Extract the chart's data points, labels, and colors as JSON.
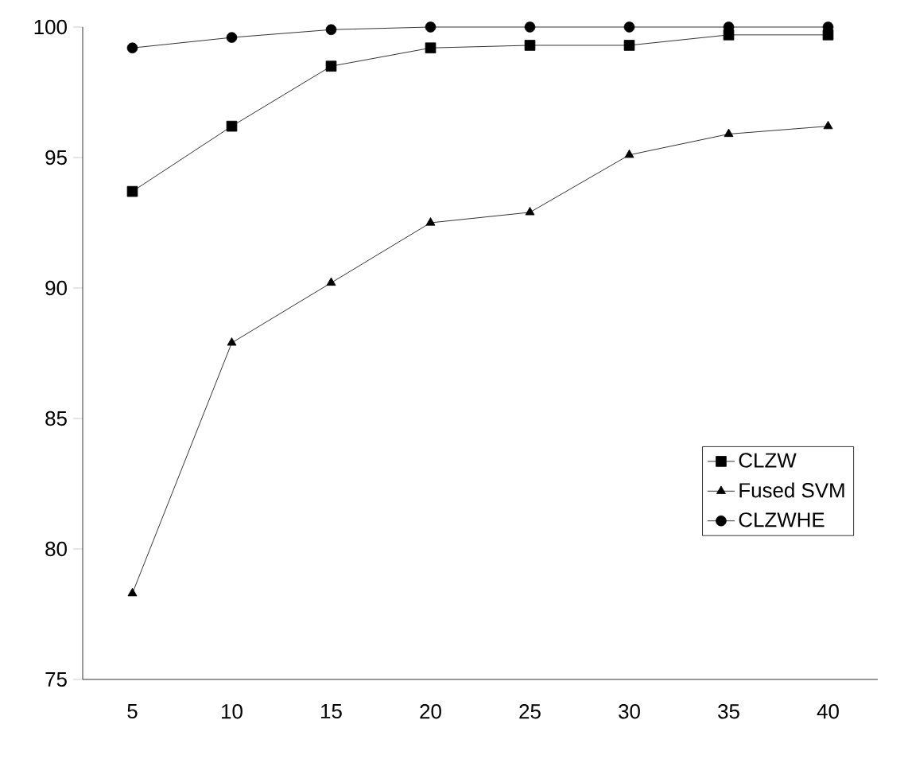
{
  "chart_data": {
    "type": "line",
    "categories": [
      "5",
      "10",
      "15",
      "20",
      "25",
      "30",
      "35",
      "40"
    ],
    "series": [
      {
        "name": "CLZW",
        "color": "#000000",
        "marker": "square",
        "values": [
          93.7,
          96.2,
          98.5,
          99.2,
          99.3,
          99.3,
          99.7,
          99.7
        ]
      },
      {
        "name": "Fused SVM",
        "color": "#000000",
        "marker": "triangle",
        "values": [
          78.3,
          87.9,
          90.2,
          92.5,
          92.9,
          95.1,
          95.9,
          96.2
        ]
      },
      {
        "name": "CLZWHE",
        "color": "#000000",
        "marker": "circle",
        "values": [
          99.2,
          99.6,
          99.9,
          100,
          100,
          100,
          100,
          100
        ]
      }
    ],
    "ylim": [
      75,
      100
    ],
    "yticks": [
      75,
      80,
      85,
      90,
      95,
      100
    ],
    "legend": "right",
    "line_style": "solid"
  }
}
